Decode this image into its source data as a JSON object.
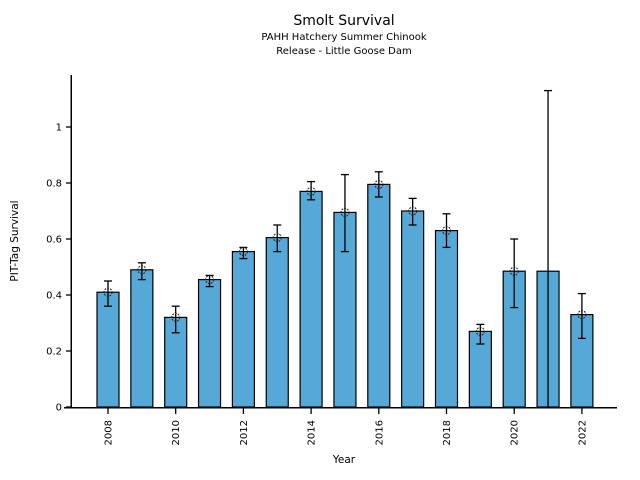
{
  "chart_data": {
    "type": "bar",
    "title": "Smolt Survival",
    "subtitle1": "PAHH Hatchery Summer Chinook",
    "subtitle2": "Release - Little Goose Dam",
    "xlabel": "Year",
    "ylabel": "PIT-Tag Survival",
    "categories": [
      2008,
      2009,
      2010,
      2011,
      2012,
      2013,
      2014,
      2015,
      2016,
      2017,
      2018,
      2019,
      2020,
      2021,
      2022
    ],
    "values": [
      0.41,
      0.49,
      0.32,
      0.455,
      0.555,
      0.605,
      0.77,
      0.695,
      0.795,
      0.7,
      0.63,
      0.27,
      0.485,
      0.485,
      0.33
    ],
    "error_low": [
      0.36,
      0.455,
      0.265,
      0.43,
      0.53,
      0.555,
      0.74,
      0.555,
      0.75,
      0.65,
      0.57,
      0.225,
      0.355,
      0.0,
      0.245
    ],
    "error_high": [
      0.45,
      0.515,
      0.36,
      0.47,
      0.57,
      0.65,
      0.805,
      0.83,
      0.84,
      0.745,
      0.69,
      0.295,
      0.6,
      1.13,
      0.405
    ],
    "point_marker": [
      true,
      true,
      true,
      true,
      true,
      true,
      true,
      true,
      true,
      true,
      true,
      true,
      true,
      false,
      true
    ],
    "xticks": [
      2008,
      2010,
      2012,
      2014,
      2016,
      2018,
      2020,
      2022
    ],
    "xtick_labels": [
      "2008",
      "2010",
      "2012",
      "2014",
      "2016",
      "2018",
      "2020",
      "2022"
    ],
    "yticks": [
      0,
      0.2,
      0.4,
      0.6,
      0.8,
      1
    ],
    "ytick_labels": [
      "0",
      "0.2",
      "0.4",
      "0.6",
      "0.8",
      "1"
    ],
    "ylim": [
      0,
      1.19
    ],
    "grid": false,
    "legend": "none",
    "bar_color": "#56a9d6",
    "bar_edge_color": "#000000",
    "error_bar_color": "#000000",
    "marker_style": "open-circle-dotted",
    "xtick_label_rotation_deg": 90
  }
}
